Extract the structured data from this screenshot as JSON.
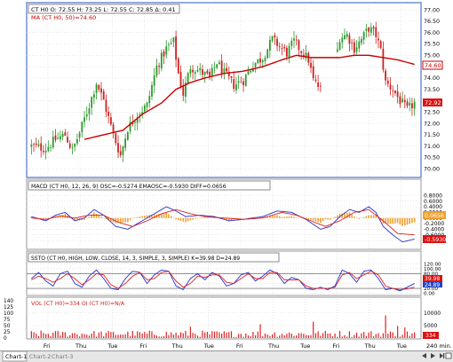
{
  "app": {
    "tabs": [
      "Chart-1",
      "Chart-2",
      "Chart-3"
    ],
    "active_tab": 0,
    "interval": "240 min."
  },
  "colors": {
    "price_up": "#2f9a2f",
    "price_down": "#cc2222",
    "ma": "#c80000",
    "macd": "#2233cc",
    "signal": "#dd2222",
    "histogram": "#f0a030",
    "stoch_k": "#2233cc",
    "stoch_d": "#dd2222",
    "volume": "#dd2222",
    "grid": "#cfcfcf",
    "frame_active": "#6f8fd8",
    "last_price_tag": "#dd1111",
    "macd_tag": "#f0a030",
    "stoch_d_tag": "#2244cc"
  },
  "chart_data": [
    {
      "type": "candlestick",
      "panel": "price",
      "legend": {
        "ohlc": "CT H0  O: 72.55  H: 73.25  L: 72.55  C: 72.85  Δ: 0.41",
        "ma": "MA (CT H0, 50)=74.60"
      },
      "ylim": [
        69.7,
        77.2
      ],
      "yticks": [
        "77.00",
        "76.50",
        "76.00",
        "75.50",
        "75.00",
        "74.50",
        "74.00",
        "73.50",
        "73.00",
        "72.50",
        "72.00",
        "71.50",
        "71.00",
        "70.50",
        "70.00"
      ],
      "xticks": [
        "Fri",
        "Thu",
        "Tue",
        "Fri",
        "Thu",
        "Tue",
        "Fri",
        "Thu",
        "Tue",
        "Fri",
        "Thu",
        "Tue"
      ],
      "last_price": "72.92",
      "ma_value": "74.60",
      "close_path": [
        [
          0,
          71.0
        ],
        [
          6,
          70.9
        ],
        [
          10,
          71.3
        ],
        [
          14,
          71.5
        ],
        [
          17,
          70.8
        ],
        [
          20,
          71.6
        ],
        [
          24,
          72.8
        ],
        [
          27,
          73.8
        ],
        [
          30,
          73.0
        ],
        [
          34,
          71.5
        ],
        [
          37,
          70.6
        ],
        [
          40,
          71.8
        ],
        [
          44,
          72.4
        ],
        [
          48,
          72.8
        ],
        [
          52,
          74.5
        ],
        [
          56,
          75.3
        ],
        [
          59,
          75.6
        ],
        [
          61,
          74.2
        ],
        [
          63,
          73.3
        ],
        [
          66,
          74.5
        ],
        [
          70,
          74.3
        ],
        [
          74,
          74.0
        ],
        [
          77,
          74.7
        ],
        [
          80,
          74.2
        ],
        [
          84,
          73.7
        ],
        [
          88,
          73.9
        ],
        [
          92,
          74.6
        ],
        [
          96,
          74.9
        ],
        [
          100,
          75.7
        ],
        [
          103,
          75.4
        ],
        [
          106,
          75.1
        ],
        [
          109,
          75.6
        ],
        [
          112,
          75.2
        ],
        [
          115,
          74.8
        ],
        [
          117,
          73.9
        ],
        [
          120,
          73.5
        ],
        [
          122,
          73.2
        ],
        [
          124,
          73.5
        ],
        [
          128,
          75.8
        ],
        [
          131,
          75.9
        ],
        [
          134,
          75.3
        ],
        [
          137,
          75.7
        ],
        [
          140,
          76.2
        ],
        [
          143,
          75.9
        ],
        [
          145,
          75.2
        ],
        [
          147,
          73.8
        ],
        [
          150,
          73.5
        ],
        [
          153,
          73.0
        ],
        [
          156,
          72.6
        ],
        [
          159,
          72.9
        ]
      ],
      "ma_path": [
        [
          22,
          71.3
        ],
        [
          30,
          71.5
        ],
        [
          38,
          71.7
        ],
        [
          46,
          72.4
        ],
        [
          54,
          72.9
        ],
        [
          60,
          73.5
        ],
        [
          66,
          73.8
        ],
        [
          72,
          74.0
        ],
        [
          80,
          74.2
        ],
        [
          88,
          74.3
        ],
        [
          96,
          74.5
        ],
        [
          104,
          74.8
        ],
        [
          110,
          75.0
        ],
        [
          116,
          74.9
        ],
        [
          122,
          74.9
        ],
        [
          128,
          74.9
        ],
        [
          134,
          75.0
        ],
        [
          140,
          75.0
        ],
        [
          146,
          74.9
        ],
        [
          152,
          74.8
        ],
        [
          159,
          74.6
        ]
      ],
      "gaps": [
        [
          121,
          126
        ]
      ]
    },
    {
      "type": "macd",
      "panel": "macd",
      "legend": "MACD (CT H0, 12, 26, 9)  OSC=-0.5274  EMAOSC=-0.5930  DIFF=0.0656",
      "ylim": [
        -1.05,
        1.0
      ],
      "yticks": [
        "0.8000",
        "0.6000",
        "0.4000",
        "0.2000",
        "0.0000",
        "-0.2000",
        "-0.4000",
        "-0.6000",
        "-0.8000"
      ],
      "tags": {
        "diff": "0.0656",
        "emaosc": "-0.5930"
      },
      "macd_path": [
        [
          0,
          0.05
        ],
        [
          6,
          -0.1
        ],
        [
          10,
          0.1
        ],
        [
          14,
          0.2
        ],
        [
          18,
          -0.1
        ],
        [
          22,
          0.0
        ],
        [
          26,
          0.3
        ],
        [
          30,
          0.1
        ],
        [
          35,
          -0.3
        ],
        [
          40,
          -0.4
        ],
        [
          46,
          -0.1
        ],
        [
          52,
          0.2
        ],
        [
          56,
          0.4
        ],
        [
          60,
          0.25
        ],
        [
          64,
          0.05
        ],
        [
          70,
          0.1
        ],
        [
          76,
          0.05
        ],
        [
          82,
          -0.1
        ],
        [
          88,
          -0.05
        ],
        [
          96,
          0.05
        ],
        [
          102,
          0.25
        ],
        [
          108,
          0.2
        ],
        [
          114,
          -0.05
        ],
        [
          120,
          -0.4
        ],
        [
          124,
          -0.3
        ],
        [
          128,
          0.05
        ],
        [
          132,
          0.3
        ],
        [
          136,
          0.2
        ],
        [
          140,
          0.4
        ],
        [
          143,
          0.2
        ],
        [
          146,
          -0.3
        ],
        [
          150,
          -0.6
        ],
        [
          154,
          -0.85
        ],
        [
          159,
          -0.75
        ]
      ],
      "signal_path": [
        [
          0,
          0.0
        ],
        [
          6,
          -0.05
        ],
        [
          12,
          0.08
        ],
        [
          18,
          0.0
        ],
        [
          24,
          0.1
        ],
        [
          30,
          0.1
        ],
        [
          36,
          -0.15
        ],
        [
          42,
          -0.3
        ],
        [
          48,
          -0.1
        ],
        [
          54,
          0.15
        ],
        [
          60,
          0.3
        ],
        [
          66,
          0.15
        ],
        [
          72,
          0.05
        ],
        [
          80,
          0.0
        ],
        [
          88,
          -0.05
        ],
        [
          96,
          0.0
        ],
        [
          104,
          0.2
        ],
        [
          110,
          0.1
        ],
        [
          116,
          -0.1
        ],
        [
          122,
          -0.3
        ],
        [
          128,
          -0.1
        ],
        [
          134,
          0.2
        ],
        [
          140,
          0.3
        ],
        [
          146,
          -0.1
        ],
        [
          152,
          -0.55
        ],
        [
          159,
          -0.6
        ]
      ]
    },
    {
      "type": "stochastic",
      "panel": "stoch",
      "legend": "SSTO (CT H0, HIGH, LOW, CLOSE, 14, 3, SIMPLE, 3, SIMPLE)  K=39.98  D=24.89",
      "ylim": [
        -5,
        125
      ],
      "yticks": [
        "120.00",
        "100.00",
        "80.00",
        "60.00",
        "40.00",
        "20.00",
        "0.00"
      ],
      "tags": {
        "k": "39.98",
        "d": "24.89"
      },
      "k_path": [
        [
          0,
          60
        ],
        [
          3,
          85
        ],
        [
          6,
          50
        ],
        [
          9,
          30
        ],
        [
          12,
          80
        ],
        [
          15,
          90
        ],
        [
          18,
          40
        ],
        [
          21,
          25
        ],
        [
          24,
          70
        ],
        [
          27,
          95
        ],
        [
          30,
          60
        ],
        [
          33,
          20
        ],
        [
          36,
          15
        ],
        [
          39,
          60
        ],
        [
          42,
          90
        ],
        [
          45,
          85
        ],
        [
          48,
          40
        ],
        [
          51,
          75
        ],
        [
          54,
          95
        ],
        [
          57,
          90
        ],
        [
          60,
          30
        ],
        [
          63,
          15
        ],
        [
          66,
          60
        ],
        [
          69,
          80
        ],
        [
          72,
          55
        ],
        [
          75,
          85
        ],
        [
          78,
          70
        ],
        [
          81,
          30
        ],
        [
          84,
          40
        ],
        [
          87,
          75
        ],
        [
          90,
          85
        ],
        [
          93,
          50
        ],
        [
          96,
          70
        ],
        [
          99,
          95
        ],
        [
          102,
          80
        ],
        [
          105,
          40
        ],
        [
          108,
          65
        ],
        [
          111,
          55
        ],
        [
          114,
          20
        ],
        [
          117,
          15
        ],
        [
          120,
          25
        ],
        [
          123,
          15
        ],
        [
          126,
          30
        ],
        [
          129,
          95
        ],
        [
          132,
          80
        ],
        [
          135,
          45
        ],
        [
          138,
          90
        ],
        [
          141,
          95
        ],
        [
          144,
          60
        ],
        [
          147,
          15
        ],
        [
          150,
          20
        ],
        [
          153,
          10
        ],
        [
          156,
          25
        ],
        [
          159,
          40
        ]
      ],
      "d_path": [
        [
          0,
          55
        ],
        [
          3,
          70
        ],
        [
          6,
          60
        ],
        [
          9,
          45
        ],
        [
          12,
          60
        ],
        [
          15,
          80
        ],
        [
          18,
          60
        ],
        [
          21,
          35
        ],
        [
          24,
          55
        ],
        [
          27,
          80
        ],
        [
          30,
          75
        ],
        [
          33,
          35
        ],
        [
          36,
          20
        ],
        [
          39,
          40
        ],
        [
          42,
          70
        ],
        [
          45,
          85
        ],
        [
          48,
          55
        ],
        [
          51,
          60
        ],
        [
          54,
          85
        ],
        [
          57,
          90
        ],
        [
          60,
          50
        ],
        [
          63,
          25
        ],
        [
          66,
          40
        ],
        [
          69,
          70
        ],
        [
          72,
          65
        ],
        [
          75,
          75
        ],
        [
          78,
          75
        ],
        [
          81,
          45
        ],
        [
          84,
          40
        ],
        [
          87,
          60
        ],
        [
          90,
          80
        ],
        [
          93,
          60
        ],
        [
          96,
          60
        ],
        [
          99,
          85
        ],
        [
          102,
          85
        ],
        [
          105,
          55
        ],
        [
          108,
          55
        ],
        [
          111,
          55
        ],
        [
          114,
          30
        ],
        [
          117,
          20
        ],
        [
          120,
          20
        ],
        [
          123,
          20
        ],
        [
          126,
          25
        ],
        [
          129,
          75
        ],
        [
          132,
          85
        ],
        [
          135,
          60
        ],
        [
          138,
          75
        ],
        [
          141,
          90
        ],
        [
          144,
          75
        ],
        [
          147,
          30
        ],
        [
          150,
          20
        ],
        [
          153,
          15
        ],
        [
          156,
          18
        ],
        [
          159,
          25
        ]
      ]
    },
    {
      "type": "bar",
      "panel": "volume",
      "legend": "VOL (CT H0)=334  OI (CT H0)=N/A",
      "ylim": [
        0,
        12000
      ],
      "yticks": [
        "10000",
        "5000"
      ],
      "left_ticks": [
        "140",
        "125",
        "100",
        "75",
        "50",
        "25",
        "0"
      ],
      "last_volume": "334",
      "spikes": [
        [
          66,
          4500
        ],
        [
          95,
          5500
        ],
        [
          117,
          6500
        ],
        [
          147,
          9000
        ],
        [
          152,
          4800
        ],
        [
          155,
          4200
        ]
      ]
    }
  ]
}
